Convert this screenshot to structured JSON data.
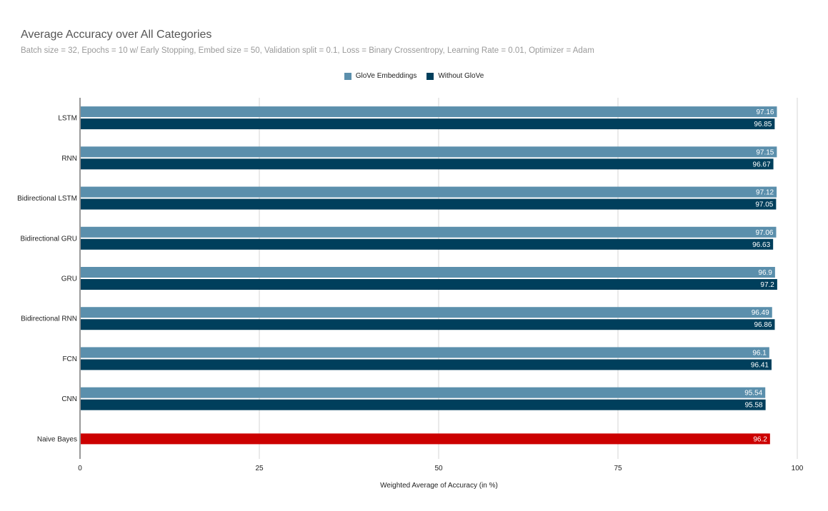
{
  "header": {
    "title": "Average Accuracy over All Categories",
    "subtitle": "Batch size = 32, Epochs = 10 w/ Early Stopping, Embed size = 50, Validation split = 0.1, Loss = Binary Crossentropy, Learning Rate = 0.01, Optimizer = Adam"
  },
  "legend": {
    "items": [
      {
        "label": "GloVe Embeddings",
        "color": "#5b8fac"
      },
      {
        "label": "Without GloVe",
        "color": "#003f5c"
      }
    ]
  },
  "chart_data": {
    "type": "bar",
    "orientation": "horizontal",
    "title": "Average Accuracy over All Categories",
    "xlabel": "Weighted Average of Accuracy (in %)",
    "ylabel": "",
    "xlim": [
      0,
      100
    ],
    "xticks": [
      0,
      25,
      50,
      75,
      100
    ],
    "grid": true,
    "legend_position": "top-center",
    "categories": [
      "LSTM",
      "RNN",
      "Bidirectional LSTM",
      "Bidirectional GRU",
      "GRU",
      "Bidirectional RNN",
      "FCN",
      "CNN",
      "Naive Bayes"
    ],
    "series": [
      {
        "name": "GloVe Embeddings",
        "color": "#5b8fac",
        "values": [
          97.16,
          97.15,
          97.12,
          97.06,
          96.9,
          96.49,
          96.1,
          95.54,
          null
        ],
        "labels": [
          "97.16",
          "97.15",
          "97.12",
          "97.06",
          "96.9",
          "96.49",
          "96.1",
          "95.54",
          ""
        ]
      },
      {
        "name": "Without GloVe",
        "color": "#003f5c",
        "values": [
          96.85,
          96.67,
          97.05,
          96.63,
          97.2,
          96.86,
          96.41,
          95.58,
          null
        ],
        "labels": [
          "96.85",
          "96.67",
          "97.05",
          "96.63",
          "97.2",
          "96.86",
          "96.41",
          "95.58",
          ""
        ]
      }
    ],
    "single_bars": [
      {
        "category": "Naive Bayes",
        "value": 96.2,
        "label": "96.2",
        "color": "#cc0000"
      }
    ]
  }
}
